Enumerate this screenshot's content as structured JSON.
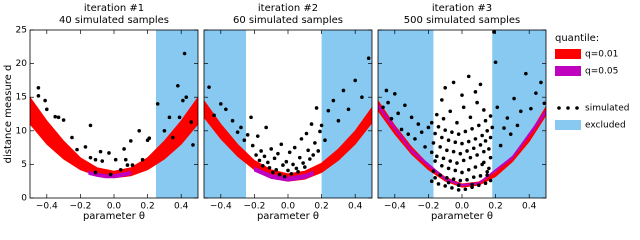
{
  "chart_data": [
    {
      "type": "scatter",
      "title": "iteration #1",
      "subtitle": "40 simulated samples",
      "xlabel": "parameter θ",
      "ylabel": "distance measure d",
      "legend_title": "quantile:",
      "xlim": [
        -0.5,
        0.5
      ],
      "ylim": [
        0,
        25
      ],
      "xticks": [
        {
          "value": -0.4,
          "label": "−0.4"
        },
        {
          "value": -0.2,
          "label": "−0.2"
        },
        {
          "value": 0,
          "label": "0.0"
        },
        0.2,
        0.4
      ],
      "yticks": [
        0,
        5,
        10,
        15,
        20,
        25
      ],
      "excluded": [
        [
          0.25,
          0.5
        ]
      ],
      "excluded_name": "excluded",
      "excluded_color": "#87c9f0",
      "series": [
        {
          "name": "q=0.01",
          "color": "#ff0000",
          "kind": "band",
          "x": [
            -0.5,
            -0.4,
            -0.3,
            -0.2,
            -0.1,
            0,
            0.1,
            0.2,
            0.3,
            0.4,
            0.5
          ],
          "low": [
            11,
            8,
            5.8,
            4.2,
            3.3,
            3,
            3.3,
            4.2,
            5.8,
            8,
            11
          ],
          "high": [
            15,
            11.5,
            8.5,
            6,
            4.5,
            4,
            4.5,
            6,
            8.5,
            11.5,
            15
          ]
        },
        {
          "name": "q=0.05",
          "color": "#bf00bf",
          "kind": "band",
          "x": [
            -0.15,
            -0.1,
            -0.05,
            0,
            0.05,
            0.1
          ],
          "low": [
            3.5,
            3.2,
            3.0,
            3.0,
            3.2,
            3.5
          ],
          "high": [
            4.0,
            3.7,
            3.5,
            3.5,
            3.7,
            4.0
          ]
        },
        {
          "name": "simulated",
          "color": "#000000",
          "kind": "points",
          "x": [
            -0.45,
            -0.45,
            -0.41,
            -0.4,
            -0.35,
            -0.33,
            -0.3,
            -0.25,
            -0.22,
            -0.17,
            -0.14,
            -0.14,
            -0.11,
            -0.08,
            -0.07,
            -0.03,
            0.01,
            0.04,
            0.07,
            0.08,
            0.1,
            0.11,
            0.15,
            0.17,
            0.2,
            0.21,
            0.26,
            0.3,
            0.33,
            0.35,
            0.38,
            0.39,
            0.41,
            0.42,
            0.43,
            0.46,
            0.47,
            -0.11,
            -0.02,
            0.06
          ],
          "values": [
            16.4,
            15.2,
            14.5,
            13.2,
            12.1,
            12.0,
            11.6,
            9.0,
            7.2,
            7.6,
            10.8,
            6.0,
            5.7,
            6.9,
            5.5,
            6.7,
            5.7,
            4.2,
            5.7,
            4.9,
            8.5,
            4.9,
            10.0,
            5.7,
            8.6,
            8.9,
            14.0,
            10.0,
            12.0,
            9.0,
            16.7,
            12.0,
            14.5,
            21.5,
            15.0,
            11.3,
            7.9,
            3.8,
            3.5,
            7.3
          ]
        }
      ]
    },
    {
      "type": "scatter",
      "title": "iteration #2",
      "subtitle": "60 simulated samples",
      "xlabel": "parameter θ",
      "xlim": [
        -0.5,
        0.5
      ],
      "ylim": [
        0,
        25
      ],
      "xticks": [
        {
          "value": -0.4,
          "label": "−0.4"
        },
        {
          "value": -0.2,
          "label": "−0.2"
        },
        {
          "value": 0,
          "label": "0.0"
        },
        0.2,
        0.4
      ],
      "excluded": [
        [
          -0.5,
          -0.25
        ],
        [
          0.2,
          0.5
        ]
      ],
      "excluded_color": "#87c9f0",
      "series": [
        {
          "name": "q=0.01",
          "color": "#ff0000",
          "kind": "band",
          "x": [
            -0.5,
            -0.4,
            -0.3,
            -0.2,
            -0.1,
            0,
            0.1,
            0.2,
            0.3,
            0.4,
            0.5
          ],
          "low": [
            12,
            8.8,
            6.2,
            4.2,
            3.0,
            2.5,
            2.8,
            3.8,
            5.6,
            8.0,
            11.2
          ],
          "high": [
            14.5,
            11,
            8,
            5.6,
            4.2,
            3.6,
            4.0,
            5.2,
            7.3,
            10,
            13.5
          ]
        },
        {
          "name": "q=0.05",
          "color": "#bf00bf",
          "kind": "band",
          "x": [
            -0.2,
            -0.1,
            0,
            0.1,
            0.15
          ],
          "low": [
            4.0,
            2.9,
            2.5,
            2.9,
            3.4
          ],
          "high": [
            4.6,
            3.5,
            3.1,
            3.5,
            4.0
          ]
        },
        {
          "name": "simulated",
          "color": "#000000",
          "kind": "points",
          "x": [
            -0.47,
            -0.44,
            -0.4,
            -0.37,
            -0.33,
            -0.3,
            -0.28,
            -0.26,
            -0.24,
            -0.22,
            -0.21,
            -0.19,
            -0.18,
            -0.17,
            -0.16,
            -0.15,
            -0.14,
            -0.13,
            -0.12,
            -0.11,
            -0.1,
            -0.09,
            -0.08,
            -0.07,
            -0.06,
            -0.05,
            -0.04,
            -0.03,
            -0.02,
            -0.01,
            0.0,
            0.01,
            0.02,
            0.03,
            0.04,
            0.05,
            0.06,
            0.07,
            0.08,
            0.09,
            0.1,
            0.11,
            0.12,
            0.13,
            0.14,
            0.15,
            0.16,
            0.17,
            0.18,
            0.19,
            0.2,
            0.22,
            0.24,
            0.27,
            0.3,
            0.33,
            0.36,
            0.4,
            0.44,
            0.48
          ],
          "values": [
            16.5,
            12.3,
            14.0,
            13.2,
            11.5,
            9.8,
            10.5,
            8.6,
            9.4,
            12.0,
            7.8,
            6.4,
            9.2,
            5.6,
            7.0,
            4.8,
            6.2,
            10.5,
            5.3,
            4.5,
            7.3,
            3.8,
            5.9,
            4.2,
            6.6,
            3.5,
            8.0,
            4.9,
            3.2,
            5.4,
            4.1,
            6.8,
            3.6,
            5.0,
            7.5,
            4.4,
            3.9,
            6.0,
            8.8,
            5.2,
            4.6,
            9.6,
            7.1,
            5.8,
            11.0,
            6.4,
            8.2,
            13.4,
            7.0,
            9.9,
            10.8,
            8.6,
            13.0,
            14.5,
            11.5,
            16.0,
            13.2,
            17.5,
            15.0,
            20.8
          ]
        }
      ]
    },
    {
      "type": "scatter",
      "title": "iteration #3",
      "subtitle": "500 simulated samples",
      "xlabel": "parameter θ",
      "xlim": [
        -0.5,
        0.5
      ],
      "ylim": [
        0,
        25
      ],
      "xticks": [
        {
          "value": -0.4,
          "label": "−0.4"
        },
        {
          "value": -0.2,
          "label": "−0.2"
        },
        {
          "value": 0,
          "label": "0.0"
        },
        0.2,
        0.4
      ],
      "excluded": [
        [
          -0.5,
          -0.17
        ],
        [
          0.18,
          0.5
        ]
      ],
      "excluded_color": "#87c9f0",
      "series": [
        {
          "name": "q=0.01",
          "color": "#ff0000",
          "kind": "band",
          "x": [
            -0.5,
            -0.4,
            -0.3,
            -0.2,
            -0.1,
            0,
            0.1,
            0.2,
            0.3,
            0.4,
            0.5
          ],
          "low": [
            13,
            9.5,
            6.5,
            4.2,
            2.5,
            1.6,
            1.9,
            3.2,
            5.4,
            8.4,
            12.3
          ],
          "high": [
            14.5,
            10.8,
            7.6,
            5.0,
            3.1,
            2.1,
            2.4,
            3.8,
            6.2,
            9.4,
            13.6
          ]
        },
        {
          "name": "q=0.05",
          "color": "#bf00bf",
          "kind": "band",
          "x": [
            -0.5,
            -0.3,
            -0.1,
            0,
            0.1,
            0.3,
            0.5
          ],
          "low": [
            13.5,
            6.8,
            2.7,
            1.8,
            2.1,
            5.9,
            12.6
          ],
          "high": [
            14.0,
            7.2,
            3.0,
            2.0,
            2.3,
            6.2,
            13.1
          ]
        },
        {
          "name": "simulated",
          "color": "#000000",
          "kind": "points",
          "x": [
            -0.47,
            -0.45,
            -0.44,
            -0.42,
            -0.4,
            -0.38,
            -0.36,
            -0.34,
            -0.32,
            -0.3,
            -0.28,
            -0.26,
            -0.24,
            -0.22,
            -0.2,
            -0.18,
            -0.14,
            -0.1,
            -0.06,
            -0.02,
            0.02,
            0.06,
            0.1,
            0.14,
            0.17,
            -0.17,
            -0.13,
            -0.09,
            -0.05,
            -0.01,
            0.03,
            0.07,
            0.11,
            0.15,
            0.16,
            -0.16,
            -0.12,
            -0.08,
            -0.04,
            0.0,
            0.04,
            0.08,
            0.12,
            0.13,
            0.17,
            -0.18,
            -0.15,
            -0.11,
            -0.07,
            -0.03,
            0.01,
            0.05,
            0.09,
            0.13,
            0.16,
            -0.17,
            -0.13,
            -0.09,
            -0.05,
            -0.01,
            0.03,
            0.07,
            0.11,
            0.14,
            0.17,
            -0.16,
            -0.12,
            -0.08,
            -0.04,
            0.0,
            0.04,
            0.08,
            0.12,
            0.15,
            0.18,
            -0.18,
            -0.14,
            -0.1,
            -0.06,
            -0.02,
            0.02,
            0.06,
            0.1,
            0.14,
            0.17,
            -0.15,
            -0.11,
            -0.07,
            -0.03,
            0.01,
            0.05,
            0.09,
            0.13,
            -0.12,
            0.08,
            -0.1,
            -0.05,
            0.0,
            0.04,
            0.11,
            -0.16,
            -0.08,
            0.06,
            0.15,
            -0.02,
            0.19,
            0.2,
            0.21,
            0.23,
            0.25,
            0.27,
            0.29,
            0.31,
            0.33,
            0.35,
            0.38,
            0.41,
            0.44,
            0.47,
            0.49
          ],
          "values": [
            13.5,
            16.0,
            14.2,
            11.8,
            15.5,
            12.6,
            10.2,
            13.8,
            9.5,
            12.0,
            8.8,
            11.0,
            9.8,
            7.6,
            10.5,
            2.5,
            2.1,
            1.8,
            1.5,
            1.2,
            1.3,
            1.6,
            1.9,
            2.2,
            2.6,
            4.0,
            3.4,
            3.0,
            2.8,
            2.6,
            2.7,
            3.1,
            3.3,
            3.9,
            4.4,
            5.5,
            4.8,
            4.4,
            4.1,
            3.8,
            4.2,
            4.6,
            5.0,
            5.3,
            6.0,
            6.8,
            6.2,
            5.9,
            5.5,
            5.2,
            5.6,
            6.0,
            6.4,
            6.9,
            7.3,
            8.2,
            7.6,
            7.1,
            6.9,
            6.6,
            7.0,
            7.4,
            7.9,
            8.5,
            9.0,
            9.6,
            9.0,
            8.6,
            8.3,
            8.1,
            8.4,
            8.8,
            9.3,
            10.0,
            10.5,
            11.2,
            10.6,
            10.1,
            9.8,
            9.5,
            9.9,
            10.3,
            10.8,
            11.5,
            12.2,
            12.4,
            11.8,
            12.9,
            11.2,
            13.5,
            12.0,
            14.2,
            13.1,
            14.6,
            15.8,
            16.4,
            17.2,
            15.3,
            18.1,
            16.9,
            3.0,
            2.3,
            2.0,
            3.4,
            1.9,
            24.7,
            20.2,
            13.5,
            7.8,
            10.4,
            11.9,
            9.5,
            14.8,
            10.8,
            12.9,
            18.5,
            13.3,
            15.6,
            17.2,
            14.1
          ]
        }
      ]
    }
  ]
}
